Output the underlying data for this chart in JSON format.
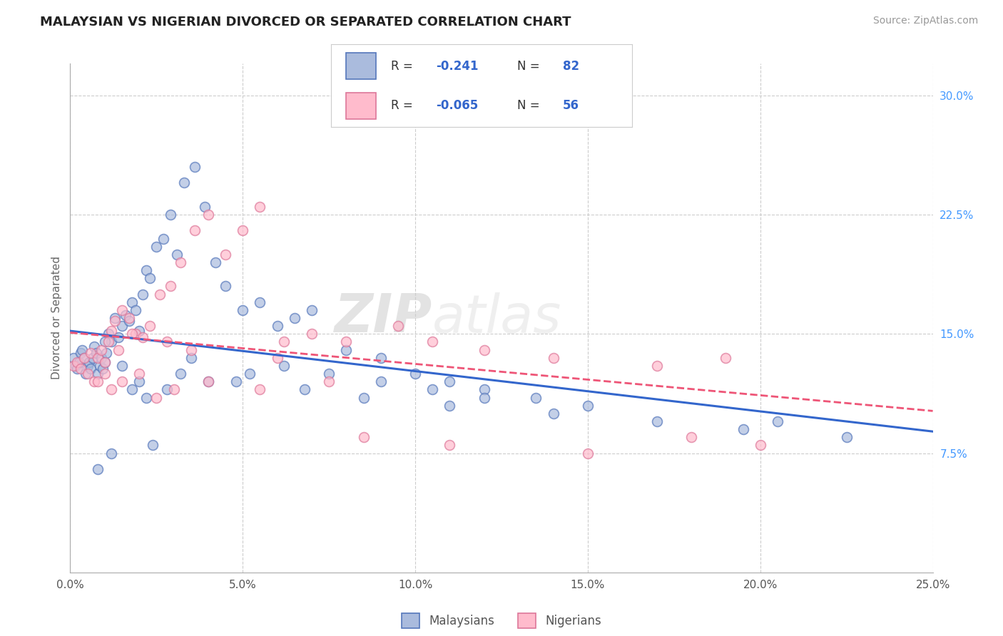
{
  "title": "MALAYSIAN VS NIGERIAN DIVORCED OR SEPARATED CORRELATION CHART",
  "source": "Source: ZipAtlas.com",
  "ylabel": "Divorced or Separated",
  "xlim": [
    0.0,
    25.0
  ],
  "ylim": [
    0.0,
    32.0
  ],
  "xticks": [
    0,
    5,
    10,
    15,
    20,
    25
  ],
  "xticklabels": [
    "0.0%",
    "5.0%",
    "10.0%",
    "15.0%",
    "20.0%",
    "25.0%"
  ],
  "yticklabels_right": [
    "7.5%",
    "15.0%",
    "22.5%",
    "30.0%"
  ],
  "yticks_right": [
    7.5,
    15.0,
    22.5,
    30.0
  ],
  "background_color": "#ffffff",
  "grid_color": "#cccccc",
  "watermark_zip": "ZIP",
  "watermark_atlas": "atlas",
  "blue_face": "#aabbdd",
  "blue_edge": "#5577bb",
  "pink_face": "#ffbbcc",
  "pink_edge": "#dd7799",
  "blue_line": "#3366cc",
  "pink_line": "#ee5577",
  "malaysian_x": [
    0.1,
    0.15,
    0.2,
    0.25,
    0.3,
    0.35,
    0.4,
    0.45,
    0.5,
    0.55,
    0.6,
    0.65,
    0.7,
    0.75,
    0.8,
    0.85,
    0.9,
    0.95,
    1.0,
    1.05,
    1.1,
    1.2,
    1.3,
    1.4,
    1.5,
    1.6,
    1.7,
    1.8,
    1.9,
    2.0,
    2.1,
    2.2,
    2.3,
    2.5,
    2.7,
    2.9,
    3.1,
    3.3,
    3.6,
    3.9,
    4.2,
    4.5,
    5.0,
    5.5,
    6.0,
    6.5,
    7.0,
    8.0,
    9.0,
    10.0,
    11.0,
    12.0,
    13.5,
    15.0,
    17.0,
    19.5,
    20.5,
    22.5,
    1.8,
    2.0,
    2.2,
    3.5,
    4.8,
    6.2,
    7.5,
    9.0,
    10.5,
    12.0,
    1.0,
    1.5,
    2.8,
    3.2,
    4.0,
    5.2,
    6.8,
    8.5,
    11.0,
    14.0,
    0.8,
    1.2,
    2.4
  ],
  "malaysian_y": [
    13.5,
    13.0,
    12.8,
    13.2,
    13.8,
    14.0,
    13.5,
    12.5,
    13.0,
    13.2,
    12.8,
    13.5,
    14.2,
    13.8,
    12.5,
    13.0,
    13.5,
    12.8,
    13.2,
    13.8,
    15.0,
    14.5,
    16.0,
    14.8,
    15.5,
    16.2,
    15.8,
    17.0,
    16.5,
    15.2,
    17.5,
    19.0,
    18.5,
    20.5,
    21.0,
    22.5,
    20.0,
    24.5,
    25.5,
    23.0,
    19.5,
    18.0,
    16.5,
    17.0,
    15.5,
    16.0,
    16.5,
    14.0,
    13.5,
    12.5,
    12.0,
    11.5,
    11.0,
    10.5,
    9.5,
    9.0,
    9.5,
    8.5,
    11.5,
    12.0,
    11.0,
    13.5,
    12.0,
    13.0,
    12.5,
    12.0,
    11.5,
    11.0,
    14.5,
    13.0,
    11.5,
    12.5,
    12.0,
    12.5,
    11.5,
    11.0,
    10.5,
    10.0,
    6.5,
    7.5,
    8.0
  ],
  "nigerian_x": [
    0.1,
    0.2,
    0.3,
    0.4,
    0.5,
    0.6,
    0.7,
    0.8,
    0.9,
    1.0,
    1.1,
    1.2,
    1.3,
    1.5,
    1.7,
    1.9,
    2.1,
    2.3,
    2.6,
    2.9,
    3.2,
    3.6,
    4.0,
    4.5,
    5.0,
    5.5,
    6.2,
    7.0,
    8.0,
    9.5,
    10.5,
    12.0,
    14.0,
    17.0,
    19.0,
    20.0,
    0.8,
    1.0,
    1.2,
    1.5,
    2.0,
    2.5,
    3.0,
    4.0,
    5.5,
    7.5,
    1.4,
    1.8,
    2.8,
    3.5,
    6.0,
    8.5,
    11.0,
    15.0,
    18.0
  ],
  "nigerian_y": [
    13.0,
    13.2,
    12.8,
    13.5,
    12.5,
    13.8,
    12.0,
    13.5,
    14.0,
    13.2,
    14.5,
    15.2,
    15.8,
    16.5,
    16.0,
    15.0,
    14.8,
    15.5,
    17.5,
    18.0,
    19.5,
    21.5,
    22.5,
    20.0,
    21.5,
    23.0,
    14.5,
    15.0,
    14.5,
    15.5,
    14.5,
    14.0,
    13.5,
    13.0,
    13.5,
    8.0,
    12.0,
    12.5,
    11.5,
    12.0,
    12.5,
    11.0,
    11.5,
    12.0,
    11.5,
    12.0,
    14.0,
    15.0,
    14.5,
    14.0,
    13.5,
    8.5,
    8.0,
    7.5,
    8.5
  ]
}
